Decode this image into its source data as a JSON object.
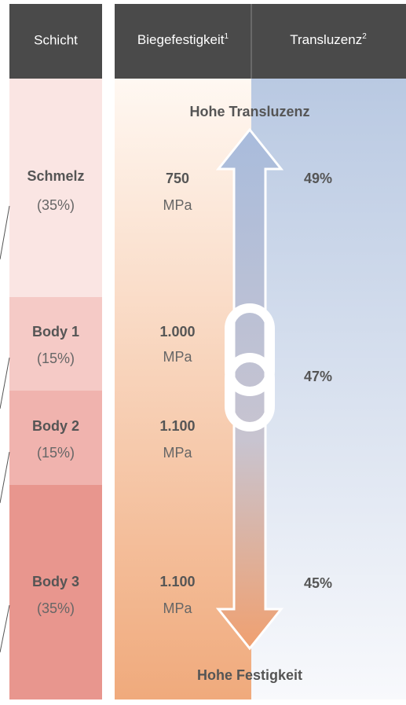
{
  "header": [
    {
      "text": "Schicht"
    },
    {
      "text": "Biegefestigkeit",
      "note": "1"
    },
    {
      "text": "Transluzenz",
      "note": "2"
    }
  ],
  "layers": [
    {
      "name": "Schmelz",
      "share": "(35%)",
      "strength": "750",
      "unit": "MPa"
    },
    {
      "name": "Body 1",
      "share": "(15%)",
      "strength": "1.000",
      "unit": "MPa"
    },
    {
      "name": "Body 2",
      "share": "(15%)",
      "strength": "1.100",
      "unit": "MPa"
    },
    {
      "name": "Body 3",
      "share": "(35%)",
      "strength": "1.100",
      "unit": "MPa"
    }
  ],
  "translucency": [
    "49%",
    "47%",
    "45%"
  ],
  "labels": {
    "top": "Hohe Transluzenz",
    "bottom": "Hohe Festigkeit"
  }
}
